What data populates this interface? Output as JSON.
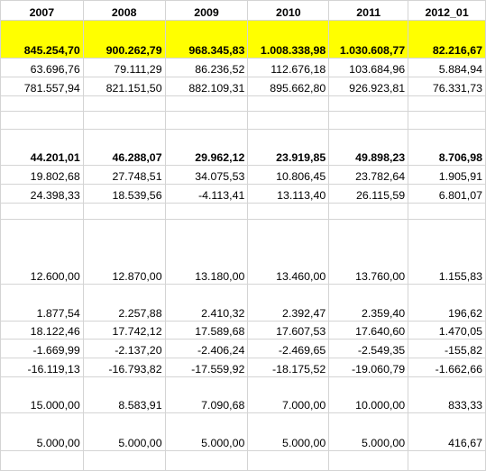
{
  "headers": [
    "2007",
    "2008",
    "2009",
    "2010",
    "2011",
    "2012_01"
  ],
  "rows": [
    {
      "h": 42,
      "bold": true,
      "hl": true,
      "cells": [
        "845.254,70",
        "900.262,79",
        "968.345,83",
        "1.008.338,98",
        "1.030.608,77",
        "82.216,67"
      ]
    },
    {
      "h": 21,
      "cells": [
        "63.696,76",
        "79.111,29",
        "86.236,52",
        "112.676,18",
        "103.684,96",
        "5.884,94"
      ]
    },
    {
      "h": 21,
      "cells": [
        "781.557,94",
        "821.151,50",
        "882.109,31",
        "895.662,80",
        "926.923,81",
        "76.331,73"
      ]
    },
    {
      "h": 17,
      "cells": [
        "",
        "",
        "",
        "",
        "",
        ""
      ]
    },
    {
      "h": 20,
      "cells": [
        "",
        "",
        "",
        "",
        "",
        ""
      ]
    },
    {
      "h": 40,
      "bold": true,
      "cells": [
        "44.201,01",
        "46.288,07",
        "29.962,12",
        "23.919,85",
        "49.898,23",
        "8.706,98"
      ]
    },
    {
      "h": 21,
      "cells": [
        "19.802,68",
        "27.748,51",
        "34.075,53",
        "10.806,45",
        "23.782,64",
        "1.905,91"
      ]
    },
    {
      "h": 21,
      "cells": [
        "24.398,33",
        "18.539,56",
        "-4.113,41",
        "13.113,40",
        "26.115,59",
        "6.801,07"
      ]
    },
    {
      "h": 18,
      "cells": [
        "",
        "",
        "",
        "",
        "",
        ""
      ]
    },
    {
      "h": 72,
      "cells": [
        "12.600,00",
        "12.870,00",
        "13.180,00",
        "13.460,00",
        "13.760,00",
        "1.155,83"
      ]
    },
    {
      "h": 41,
      "cells": [
        "1.877,54",
        "2.257,88",
        "2.410,32",
        "2.392,47",
        "2.359,40",
        "196,62"
      ]
    },
    {
      "h": 20,
      "cells": [
        "18.122,46",
        "17.742,12",
        "17.589,68",
        "17.607,53",
        "17.640,60",
        "1.470,05"
      ]
    },
    {
      "h": 21,
      "cells": [
        "-1.669,99",
        "-2.137,20",
        "-2.406,24",
        "-2.469,65",
        "-2.549,35",
        "-155,82"
      ]
    },
    {
      "h": 21,
      "cells": [
        "-16.119,13",
        "-16.793,82",
        "-17.559,92",
        "-18.175,52",
        "-19.060,79",
        "-1.662,66"
      ]
    },
    {
      "h": 40,
      "cells": [
        "15.000,00",
        "8.583,91",
        "7.090,68",
        "7.000,00",
        "10.000,00",
        "833,33"
      ]
    },
    {
      "h": 42,
      "cells": [
        "5.000,00",
        "5.000,00",
        "5.000,00",
        "5.000,00",
        "5.000,00",
        "416,67"
      ]
    },
    {
      "h": 22,
      "cells": [
        "",
        "",
        "",
        "",
        "",
        ""
      ]
    }
  ]
}
